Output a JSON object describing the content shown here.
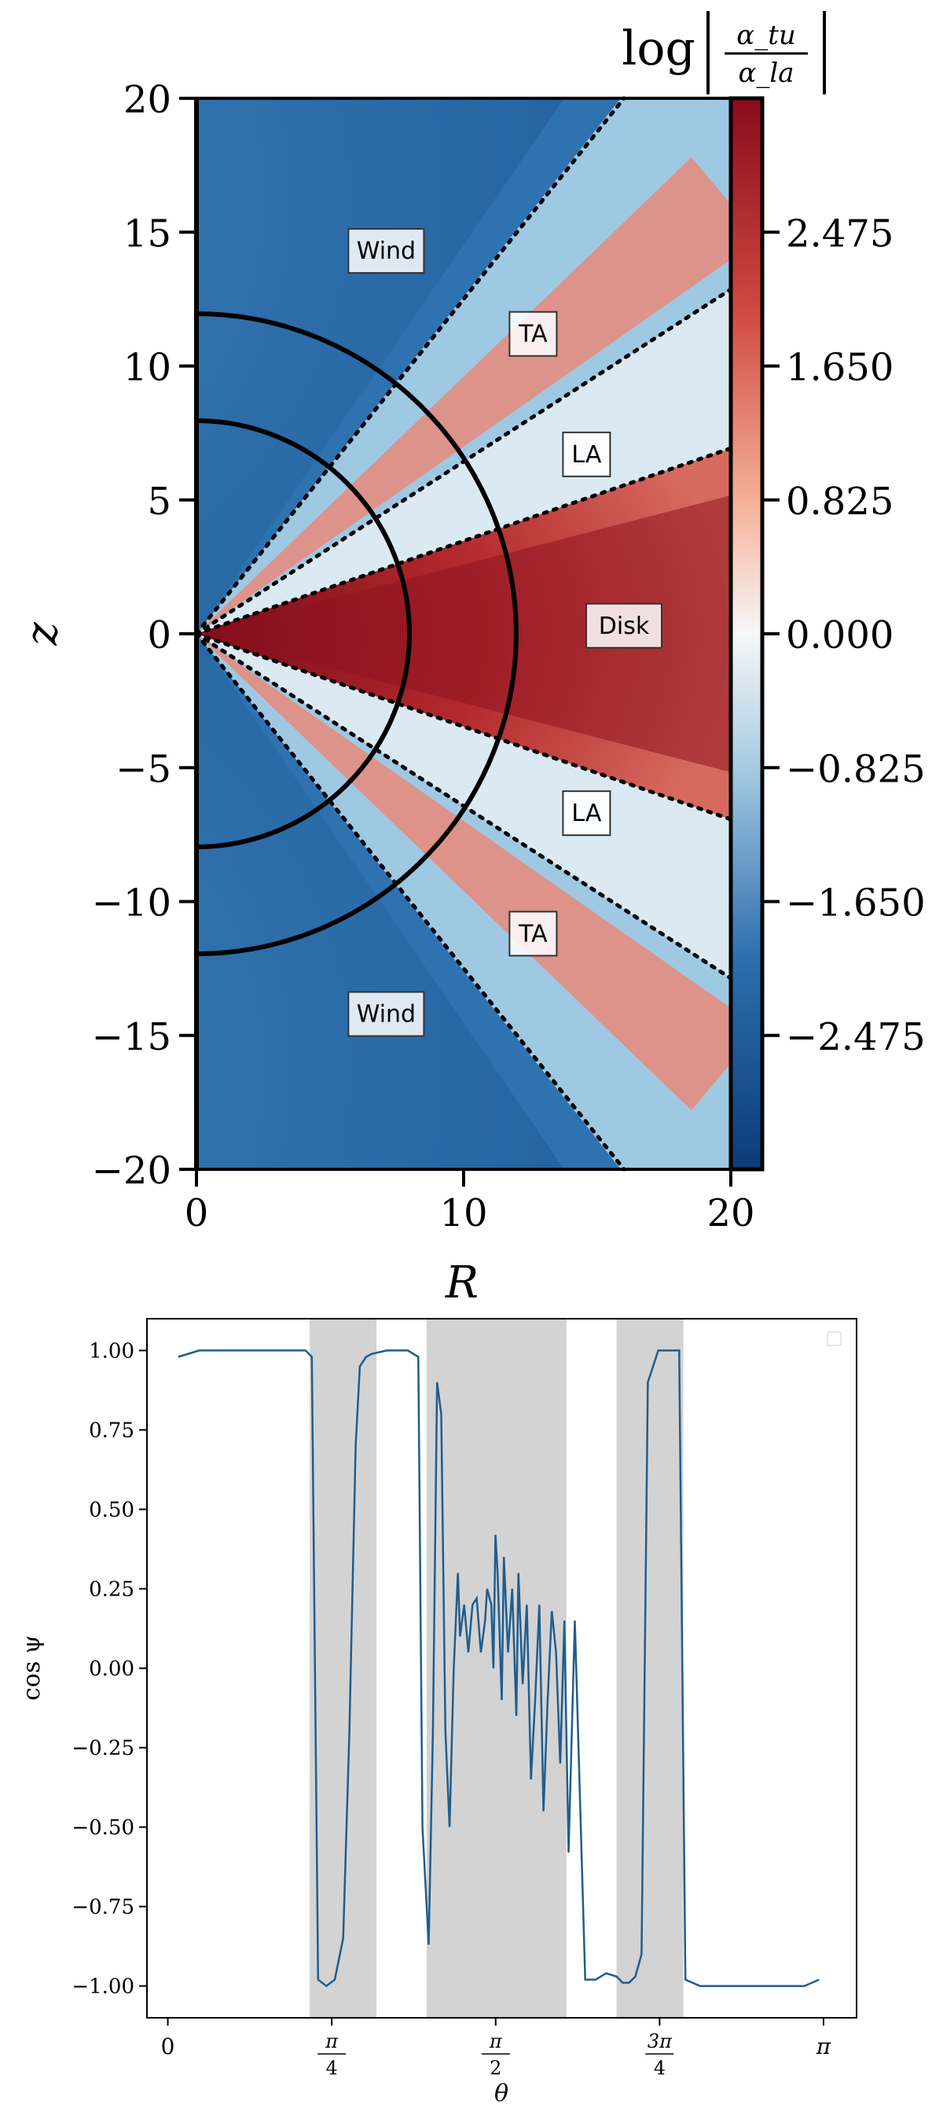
{
  "chart_data": [
    {
      "type": "heatmap",
      "title": "",
      "colorbar_label": "log |α_tu / α_la|",
      "colorbar_label_parts": {
        "prefix": "log",
        "numerator": "α_tu",
        "denominator": "α_la"
      },
      "xlabel": "R",
      "ylabel": "z",
      "xlim": [
        0,
        20
      ],
      "ylim": [
        -20,
        20
      ],
      "x_ticks": [
        0,
        10,
        20
      ],
      "x_tick_labels": [
        "0",
        "10",
        "20"
      ],
      "y_ticks": [
        20,
        15,
        10,
        5,
        0,
        -5,
        -10,
        -15,
        -20
      ],
      "y_tick_labels": [
        "20",
        "15",
        "10",
        "5",
        "0",
        "−5",
        "−10",
        "−15",
        "−20"
      ],
      "colorbar_ticks": [
        2.475,
        1.65,
        0.825,
        0,
        -0.825,
        -1.65,
        -2.475
      ],
      "colorbar_tick_labels": [
        "2.475",
        "1.650",
        "0.825",
        "0.000",
        "−0.825",
        "−1.650",
        "−2.475"
      ],
      "colorbar_range": [
        -3.3,
        3.3
      ],
      "colormap": {
        "low": "#0b3c78",
        "mid": "#f7f7f7",
        "high": "#8b0a1c"
      },
      "circles_radius": [
        8,
        12
      ],
      "dotted_line_endpoints": [
        [
          16,
          20
        ],
        [
          20,
          12.9
        ],
        [
          20,
          6.9
        ],
        [
          20,
          -6.9
        ],
        [
          20,
          -12.9
        ],
        [
          16,
          -20
        ]
      ],
      "region_labels": [
        {
          "text": "Wind",
          "R": 7.1,
          "z": 14.3
        },
        {
          "text": "TA",
          "R": 12.6,
          "z": 11.2
        },
        {
          "text": "LA",
          "R": 14.6,
          "z": 6.7
        },
        {
          "text": "Disk",
          "R": 16.0,
          "z": 0.3
        },
        {
          "text": "LA",
          "R": 14.6,
          "z": -6.7
        },
        {
          "text": "TA",
          "R": 12.6,
          "z": -11.2
        },
        {
          "text": "Wind",
          "R": 7.1,
          "z": -14.2
        }
      ]
    },
    {
      "type": "line",
      "title": "",
      "xlabel": "θ",
      "ylabel": "cos ψ",
      "xlim": [
        -0.1,
        3.3
      ],
      "ylim": [
        -1.1,
        1.1
      ],
      "x_ticks": [
        0,
        0.7854,
        1.5708,
        2.3562,
        3.1416
      ],
      "x_tick_labels": [
        "0",
        "π/4",
        "π/2",
        "3π/4",
        "π"
      ],
      "y_ticks": [
        1.0,
        0.75,
        0.5,
        0.25,
        0.0,
        -0.25,
        -0.5,
        -0.75,
        -1.0
      ],
      "y_tick_labels": [
        "1.00",
        "0.75",
        "0.50",
        "0.25",
        "0.00",
        "−0.25",
        "−0.50",
        "−0.75",
        "−1.00"
      ],
      "shaded_intervals": [
        [
          0.68,
          1.0
        ],
        [
          1.24,
          1.91
        ],
        [
          2.15,
          2.47
        ]
      ],
      "shade_color": "#d3d3d3",
      "line_color": "#1f5d8e",
      "legend_placement": "top-right",
      "series": [
        {
          "x": [
            0.05,
            0.1,
            0.15,
            0.3,
            0.5,
            0.66,
            0.69,
            0.72,
            0.76,
            0.8,
            0.84,
            0.87,
            0.9,
            0.92,
            0.95,
            0.98,
            1.05,
            1.15,
            1.2,
            1.22,
            1.25,
            1.27,
            1.29,
            1.31,
            1.33,
            1.35,
            1.37,
            1.39,
            1.4,
            1.42,
            1.44,
            1.46,
            1.48,
            1.5,
            1.52,
            1.53,
            1.55,
            1.56,
            1.57,
            1.58,
            1.6,
            1.61,
            1.63,
            1.65,
            1.67,
            1.68,
            1.7,
            1.72,
            1.74,
            1.76,
            1.78,
            1.8,
            1.82,
            1.84,
            1.86,
            1.88,
            1.9,
            1.92,
            1.95,
            2.0,
            2.05,
            2.1,
            2.15,
            2.18,
            2.21,
            2.24,
            2.27,
            2.3,
            2.35,
            2.4,
            2.45,
            2.48,
            2.55,
            2.7,
            2.9,
            3.05,
            3.12
          ],
          "y": [
            0.98,
            0.99,
            1.0,
            1.0,
            1.0,
            1.0,
            0.98,
            -0.98,
            -1.0,
            -0.98,
            -0.85,
            -0.2,
            0.7,
            0.95,
            0.98,
            0.99,
            1.0,
            1.0,
            0.98,
            -0.5,
            -0.87,
            -0.2,
            0.9,
            0.8,
            -0.2,
            -0.5,
            0.0,
            0.3,
            0.1,
            0.2,
            0.05,
            0.2,
            0.22,
            0.05,
            0.15,
            0.25,
            0.2,
            0.0,
            0.42,
            0.3,
            -0.1,
            0.35,
            0.05,
            0.25,
            -0.15,
            0.3,
            -0.05,
            0.2,
            -0.35,
            -0.1,
            0.2,
            -0.45,
            -0.1,
            0.18,
            0.05,
            -0.3,
            0.15,
            -0.58,
            0.15,
            -0.98,
            -0.98,
            -0.96,
            -0.97,
            -0.99,
            -0.99,
            -0.97,
            -0.9,
            0.9,
            1.0,
            1.0,
            1.0,
            -0.98,
            -1.0,
            -1.0,
            -1.0,
            -1.0,
            -0.98
          ]
        }
      ]
    }
  ]
}
